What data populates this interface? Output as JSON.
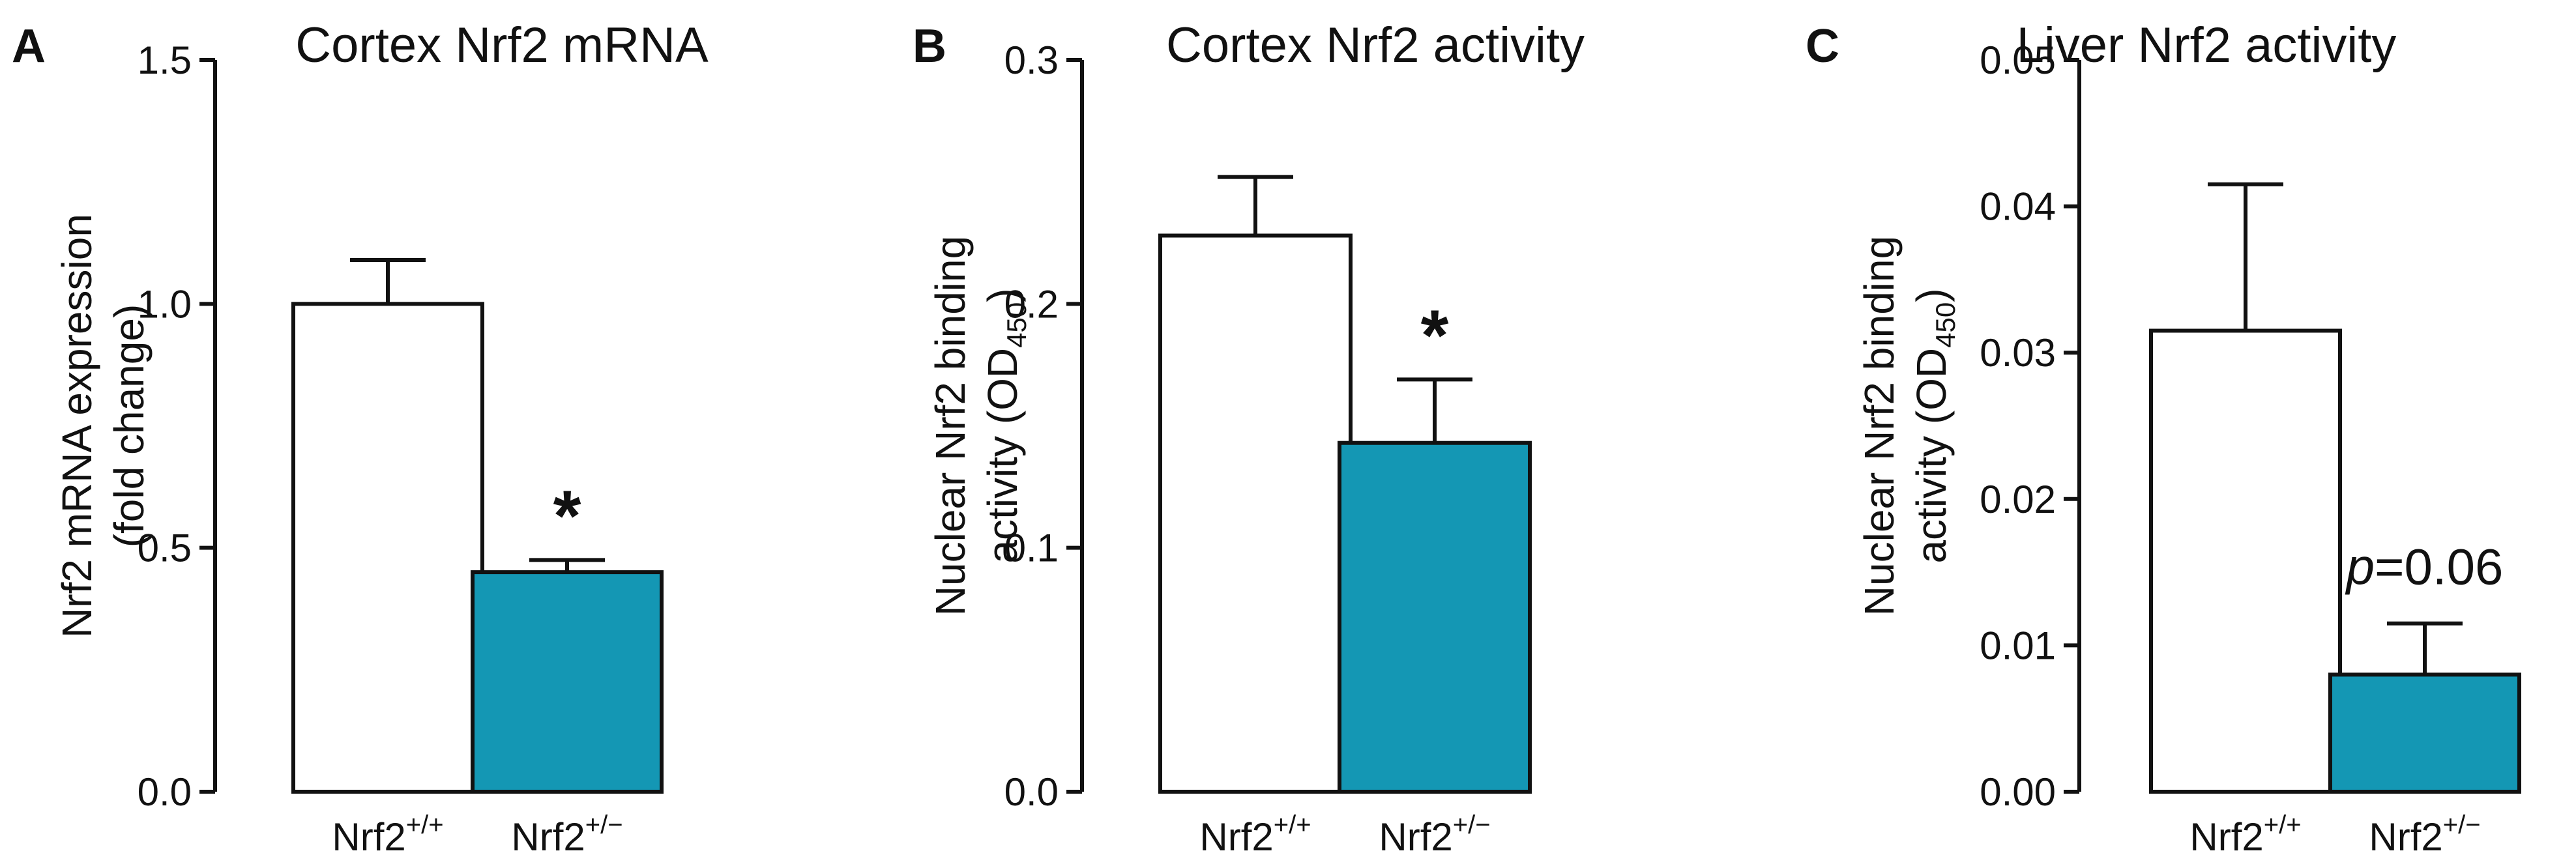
{
  "chart_data": [
    {
      "type": "bar",
      "panel": "A",
      "title": "Cortex Nrf2 mRNA",
      "ylabel": "Nrf2 mRNA expression (fold change)",
      "ylabel_lines": [
        "Nrf2 mRNA expression",
        "(fold change)"
      ],
      "categories": [
        {
          "base": "Nrf2",
          "sup": "+/+"
        },
        {
          "base": "Nrf2",
          "sup": "+/−"
        }
      ],
      "values": [
        1.0,
        0.45
      ],
      "errors": [
        0.09,
        0.025
      ],
      "ylim": [
        0,
        1.5
      ],
      "yticks": [
        "0.0",
        "0.5",
        "1.0",
        "1.5"
      ],
      "bar_colors": [
        "#ffffff",
        "#1497b4"
      ],
      "annotation": {
        "bar": 1,
        "text": "*"
      }
    },
    {
      "type": "bar",
      "panel": "B",
      "title": "Cortex Nrf2 activity",
      "ylabel": "Nuclear Nrf2 binding activity (OD450)",
      "ylabel_lines": [
        "Nuclear Nrf2 binding",
        "activity (OD"
      ],
      "ylabel_sub": "450",
      "ylabel_tail": ")",
      "categories": [
        {
          "base": "Nrf2",
          "sup": "+/+"
        },
        {
          "base": "Nrf2",
          "sup": "+/−"
        }
      ],
      "values": [
        0.228,
        0.143
      ],
      "errors": [
        0.024,
        0.026
      ],
      "ylim": [
        0,
        0.3
      ],
      "yticks": [
        "0.0",
        "0.1",
        "0.2",
        "0.3"
      ],
      "bar_colors": [
        "#ffffff",
        "#1497b4"
      ],
      "annotation": {
        "bar": 1,
        "text": "*"
      }
    },
    {
      "type": "bar",
      "panel": "C",
      "title": "Liver Nrf2 activity",
      "ylabel": "Nuclear Nrf2 binding activity (OD450)",
      "ylabel_lines": [
        "Nuclear Nrf2 binding",
        "activity (OD"
      ],
      "ylabel_sub": "450",
      "ylabel_tail": ")",
      "categories": [
        {
          "base": "Nrf2",
          "sup": "+/+"
        },
        {
          "base": "Nrf2",
          "sup": "+/−"
        }
      ],
      "values": [
        0.0315,
        0.008
      ],
      "errors": [
        0.01,
        0.0035
      ],
      "ylim": [
        0,
        0.05
      ],
      "yticks": [
        "0.00",
        "0.01",
        "0.02",
        "0.03",
        "0.04",
        "0.05"
      ],
      "bar_colors": [
        "#ffffff",
        "#1497b4"
      ],
      "annotation": {
        "bar": 1,
        "text_italic": "p",
        "text": "=0.06"
      }
    }
  ]
}
